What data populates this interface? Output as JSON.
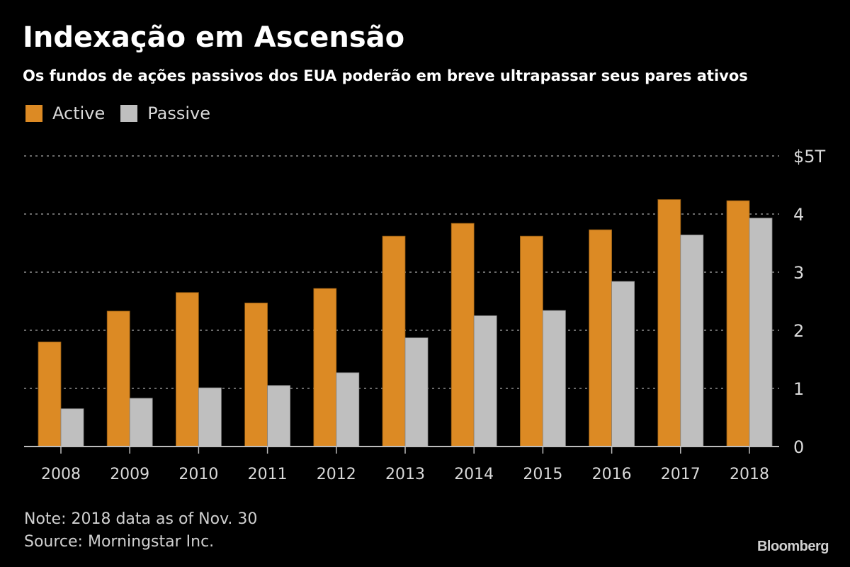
{
  "chart_data": {
    "type": "bar",
    "title": "Indexação em Ascensão",
    "subtitle": "Os fundos de ações passivos dos EUA poderão em breve ultrapassar seus pares ativos",
    "categories": [
      "2008",
      "2009",
      "2010",
      "2011",
      "2012",
      "2013",
      "2014",
      "2015",
      "2016",
      "2017",
      "2018"
    ],
    "series": [
      {
        "name": "Active",
        "color": "#dc8a24",
        "values": [
          1.8,
          2.33,
          2.65,
          2.47,
          2.72,
          3.62,
          3.84,
          3.62,
          3.73,
          4.25,
          4.23
        ]
      },
      {
        "name": "Passive",
        "color": "#bfbfbf",
        "values": [
          0.65,
          0.83,
          1.01,
          1.05,
          1.27,
          1.87,
          2.25,
          2.34,
          2.84,
          3.64,
          3.93
        ]
      }
    ],
    "xlabel": "",
    "ylabel": "",
    "ylim": [
      0,
      5
    ],
    "yticks": [
      0,
      1,
      2,
      3,
      4,
      5
    ],
    "ytick_labels": [
      "0",
      "1",
      "2",
      "3",
      "4",
      "$5T"
    ],
    "grid": true,
    "legend_position": "top-left"
  },
  "footer": {
    "note": "Note: 2018 data as of Nov. 30",
    "source": "Source: Morningstar Inc.",
    "brand": "Bloomberg"
  }
}
